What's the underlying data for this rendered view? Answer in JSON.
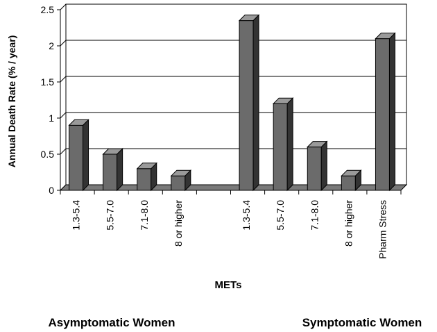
{
  "chart_data": {
    "type": "bar",
    "categories": [
      "1.3-5.4",
      "5.5-7.0",
      "7.1-8.0",
      "8 or higher",
      "",
      "1.3-5.4",
      "5.5-7.0",
      "7.1-8.0",
      "8 or higher",
      "Pharm Stress"
    ],
    "values": [
      0.9,
      0.5,
      0.3,
      0.2,
      null,
      2.35,
      1.2,
      0.6,
      0.2,
      2.1
    ],
    "title": "",
    "xlabel": "METs",
    "ylabel": "Annual Death Rate (% / year)",
    "ylim": [
      0,
      2.5
    ],
    "yticks": [
      "0",
      "0.5",
      "1",
      "1.5",
      "2",
      "2.5"
    ],
    "ytick_values": [
      0,
      0.5,
      1,
      1.5,
      2,
      2.5
    ],
    "grid": true,
    "style": "3d",
    "bar_color": "#6b6b6b",
    "groups": [
      {
        "label": "Asymptomatic Women",
        "categories": [
          0,
          1,
          2,
          3
        ]
      },
      {
        "label": "Symptomatic Women",
        "categories": [
          5,
          6,
          7,
          8,
          9
        ]
      }
    ]
  }
}
